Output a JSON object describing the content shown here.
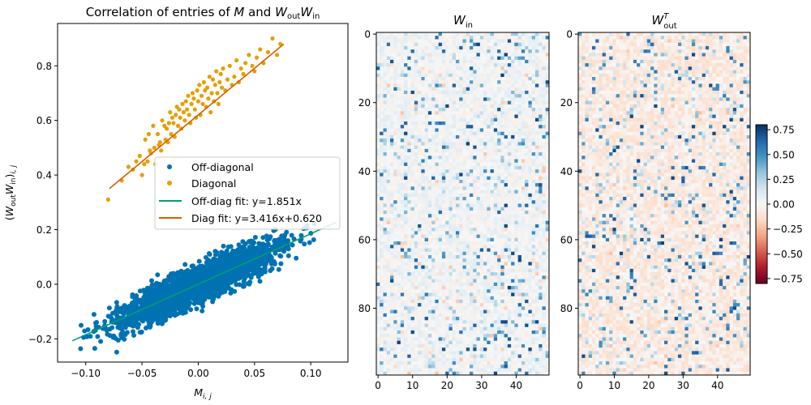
{
  "chart_data": [
    {
      "type": "scatter",
      "title": "Correlation of entries of M and W_out W_in",
      "title_parts": {
        "prefix": "Correlation of entries of ",
        "m": "M",
        "and": " and ",
        "w": "W",
        "out": "out",
        "in": "in"
      },
      "xlabel": {
        "base": "M",
        "sub": "i, j"
      },
      "ylabel": {
        "open": "(",
        "w": "W",
        "out": "out",
        "in": "in",
        "close": ")",
        "sub": "i, j"
      },
      "xlim": [
        -0.125,
        0.133
      ],
      "ylim": [
        -0.285,
        0.955
      ],
      "xticks": [
        -0.1,
        -0.05,
        0.0,
        0.05,
        0.1
      ],
      "xtick_labels": [
        "−0.10",
        "−0.05",
        "0.00",
        "0.05",
        "0.10"
      ],
      "yticks": [
        -0.2,
        0.0,
        0.2,
        0.4,
        0.6,
        0.8
      ],
      "ytick_labels": [
        "−0.2",
        "0.0",
        "0.2",
        "0.4",
        "0.6",
        "0.8"
      ],
      "colors": {
        "offdiag": "#0072b2",
        "diag": "#e69f00",
        "offdiag_fit": "#009e73",
        "diag_fit": "#d55e00"
      },
      "series": [
        {
          "name": "Off-diagonal",
          "kind": "points",
          "n_points": 2450,
          "x_range": [
            -0.112,
            0.123
          ],
          "slope": 1.851,
          "intercept": 0.0,
          "noise_sd": 0.04,
          "summary": "dense cloud of off-diagonal entries along y = 1.851x"
        },
        {
          "name": "Diagonal",
          "kind": "points",
          "x": [
            -0.08,
            -0.068,
            -0.062,
            -0.058,
            -0.055,
            -0.052,
            -0.05,
            -0.048,
            -0.047,
            -0.045,
            -0.044,
            -0.043,
            -0.042,
            -0.04,
            -0.039,
            -0.038,
            -0.036,
            -0.035,
            -0.034,
            -0.033,
            -0.032,
            -0.03,
            -0.029,
            -0.028,
            -0.027,
            -0.026,
            -0.025,
            -0.024,
            -0.023,
            -0.022,
            -0.021,
            -0.02,
            -0.019,
            -0.018,
            -0.017,
            -0.016,
            -0.015,
            -0.014,
            -0.013,
            -0.012,
            -0.011,
            -0.01,
            -0.009,
            -0.008,
            -0.007,
            -0.006,
            -0.005,
            -0.004,
            -0.003,
            -0.002,
            -0.001,
            0.0,
            0.001,
            0.002,
            0.003,
            0.004,
            0.005,
            0.006,
            0.007,
            0.008,
            0.009,
            0.01,
            0.011,
            0.012,
            0.013,
            0.014,
            0.015,
            0.016,
            0.017,
            0.018,
            0.019,
            0.02,
            0.021,
            0.022,
            0.024,
            0.026,
            0.028,
            0.03,
            0.032,
            0.034,
            0.036,
            0.038,
            0.04,
            0.042,
            0.045,
            0.048,
            0.05,
            0.052,
            0.055,
            0.058,
            0.062,
            0.066,
            0.07,
            0.073
          ],
          "y": [
            0.31,
            0.38,
            0.43,
            0.42,
            0.45,
            0.47,
            0.4,
            0.44,
            0.53,
            0.45,
            0.55,
            0.49,
            0.48,
            0.58,
            0.5,
            0.44,
            0.55,
            0.51,
            0.52,
            0.49,
            0.6,
            0.58,
            0.53,
            0.57,
            0.52,
            0.59,
            0.63,
            0.55,
            0.61,
            0.59,
            0.54,
            0.62,
            0.65,
            0.58,
            0.64,
            0.61,
            0.57,
            0.66,
            0.63,
            0.6,
            0.67,
            0.64,
            0.69,
            0.62,
            0.59,
            0.66,
            0.7,
            0.68,
            0.64,
            0.61,
            0.71,
            0.67,
            0.73,
            0.62,
            0.69,
            0.66,
            0.74,
            0.71,
            0.65,
            0.72,
            0.68,
            0.76,
            0.63,
            0.7,
            0.75,
            0.67,
            0.73,
            0.78,
            0.7,
            0.66,
            0.74,
            0.77,
            0.72,
            0.79,
            0.71,
            0.75,
            0.8,
            0.73,
            0.76,
            0.82,
            0.74,
            0.79,
            0.77,
            0.81,
            0.84,
            0.8,
            0.78,
            0.83,
            0.86,
            0.81,
            0.85,
            0.9,
            0.84,
            0.88
          ]
        },
        {
          "name": "Off-diag fit: y=1.851x",
          "kind": "line",
          "slope": 1.851,
          "intercept": 0.0,
          "x_range": [
            -0.112,
            0.123
          ]
        },
        {
          "name": "Diag fit: y=3.416x+0.620",
          "kind": "line",
          "slope": 3.416,
          "intercept": 0.62,
          "x_range": [
            -0.079,
            0.076
          ]
        }
      ],
      "legend": {
        "location": "center-right",
        "entries": [
          "Off-diagonal",
          "Diagonal",
          "Off-diag fit: y=1.851x",
          "Diag fit: y=3.416x+0.620"
        ]
      }
    },
    {
      "type": "heatmap",
      "title": {
        "base": "W",
        "sub": "in"
      },
      "rows": 100,
      "cols": 50,
      "xticks": [
        0,
        10,
        20,
        30,
        40
      ],
      "yticks": [
        0,
        20,
        40,
        60,
        80
      ],
      "value_range": [
        -0.8,
        0.8
      ],
      "summary": "mostly near-zero weights with sparse positive (blue) entries"
    },
    {
      "type": "heatmap",
      "title": {
        "base": "W",
        "sub": "out",
        "sup": "T"
      },
      "rows": 100,
      "cols": 50,
      "xticks": [
        0,
        10,
        20,
        30,
        40
      ],
      "yticks": [
        0,
        20,
        40,
        60,
        80
      ],
      "value_range": [
        -0.8,
        0.8
      ],
      "summary": "faint negative (red) background with sparse positive (blue) entries"
    }
  ],
  "colorbar": {
    "cmap": "RdBu",
    "range": [
      -0.8,
      0.8
    ],
    "ticks": [
      0.75,
      0.5,
      0.25,
      0.0,
      -0.25,
      -0.5,
      -0.75
    ],
    "tick_labels": [
      "0.75",
      "0.50",
      "0.25",
      "0.00",
      "−0.25",
      "−0.50",
      "−0.75"
    ]
  }
}
